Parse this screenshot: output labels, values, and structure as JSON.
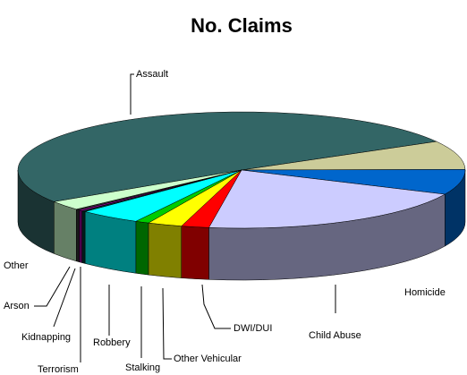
{
  "chart_data": {
    "type": "pie3d",
    "title": "No. Claims",
    "categories": [
      "Assault",
      null,
      "Homicide",
      "Child Abuse",
      "DWI/DUI",
      "Other Vehicular",
      "Stalking",
      "Robbery",
      "Terrorism",
      "Kidnapping",
      "Arson",
      "Other"
    ],
    "values": [
      51,
      8,
      7,
      20.5,
      2,
      2.5,
      1,
      4.5,
      0.3,
      0.3,
      0.3,
      2.6
    ],
    "colors": [
      "#336666",
      "#cccc99",
      "#0066cc",
      "#ccccff",
      "#ff0000",
      "#ffff00",
      "#00cc00",
      "#00ffff",
      "#003333",
      "#990099",
      "#333333",
      "#ccffcc"
    ]
  }
}
